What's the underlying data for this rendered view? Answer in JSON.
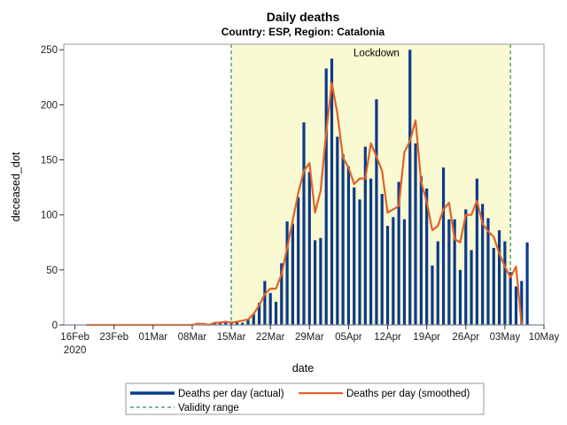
{
  "chart_data": {
    "type": "bar",
    "title": "Daily deaths",
    "subtitle": "Country: ESP, Region: Catalonia",
    "xlabel": "date",
    "ylabel": "deceased_dot",
    "ylim": [
      0,
      255
    ],
    "yticks": [
      0,
      50,
      100,
      150,
      200,
      250
    ],
    "x_start_date": "2020-02-14",
    "x_end_date": "2020-05-10",
    "xticks": [
      {
        "label": "16Feb",
        "day": 2,
        "sublabel": "2020"
      },
      {
        "label": "23Feb",
        "day": 9
      },
      {
        "label": "01Mar",
        "day": 16
      },
      {
        "label": "08Mar",
        "day": 23
      },
      {
        "label": "15Mar",
        "day": 30
      },
      {
        "label": "22Mar",
        "day": 37
      },
      {
        "label": "29Mar",
        "day": 44
      },
      {
        "label": "05Apr",
        "day": 51
      },
      {
        "label": "12Apr",
        "day": 58
      },
      {
        "label": "19Apr",
        "day": 65
      },
      {
        "label": "26Apr",
        "day": 72
      },
      {
        "label": "03May",
        "day": 79
      },
      {
        "label": "10May",
        "day": 86
      }
    ],
    "validity_range": {
      "start_day": 30,
      "end_day": 80
    },
    "annotation": {
      "text": "Lockdown",
      "day": 56,
      "y": 248
    },
    "series": [
      {
        "name": "Deaths per day (actual)",
        "kind": "bar",
        "start_day": 4,
        "values": [
          0,
          0,
          0,
          0,
          0,
          0,
          0,
          0,
          0,
          0,
          0,
          0,
          0,
          0,
          0,
          0,
          0,
          0,
          0,
          0,
          2,
          0,
          1,
          2,
          3,
          2,
          3,
          3,
          2,
          5,
          10,
          20,
          40,
          29,
          21,
          56,
          94,
          92,
          116,
          184,
          139,
          77,
          79,
          233,
          242,
          171,
          155,
          144,
          125,
          114,
          162,
          133,
          205,
          119,
          90,
          98,
          130,
          96,
          250,
          165,
          135,
          124,
          54,
          76,
          143,
          96,
          96,
          50,
          105,
          68,
          133,
          110,
          97,
          70,
          86,
          76,
          48,
          35,
          40,
          75
        ]
      },
      {
        "name": "Deaths per day (smoothed)",
        "kind": "line",
        "start_day": 4,
        "values": [
          0,
          0,
          0,
          0,
          0,
          0,
          0,
          0,
          0,
          0,
          0,
          0,
          0,
          0,
          0,
          0,
          0,
          0,
          0,
          0,
          1,
          1,
          0,
          2,
          2,
          3,
          2,
          3,
          4,
          5,
          10,
          18,
          28,
          33,
          33,
          46,
          70,
          95,
          120,
          140,
          147,
          102,
          122,
          175,
          220,
          192,
          152,
          143,
          128,
          133,
          133,
          165,
          153,
          140,
          102,
          105,
          108,
          157,
          167,
          186,
          130,
          112,
          86,
          90,
          105,
          111,
          78,
          75,
          100,
          100,
          113,
          92,
          85,
          80,
          65,
          53,
          43,
          53,
          0
        ]
      }
    ],
    "legend": [
      {
        "label": "Deaths per day (actual)",
        "style": "bar"
      },
      {
        "label": "Deaths per day (smoothed)",
        "style": "line"
      },
      {
        "label": "Validity range",
        "style": "dashed"
      }
    ],
    "colors": {
      "bar": "#0b3a8c",
      "line": "#e0622a",
      "validity": "#2e8b57",
      "shade": "#fafad2",
      "frame": "#999999"
    }
  }
}
